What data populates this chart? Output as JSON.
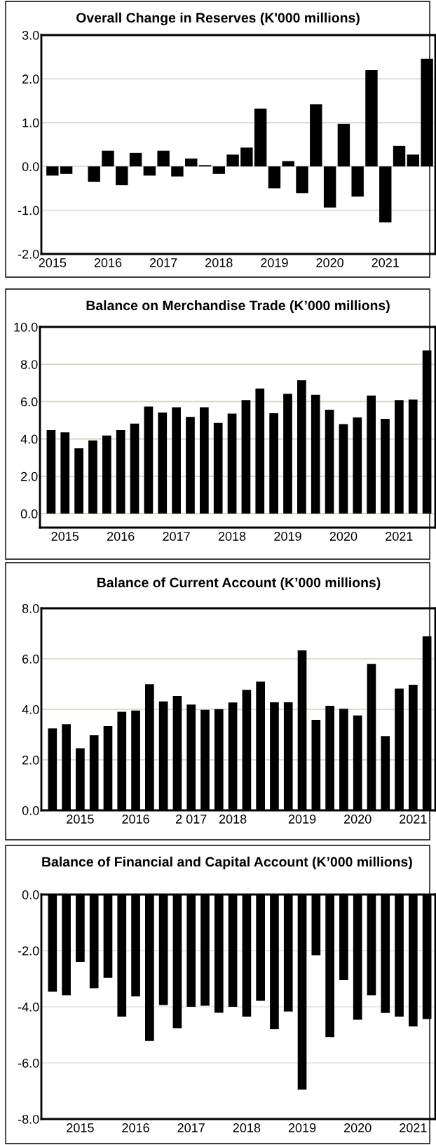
{
  "chart_data": [
    {
      "type": "bar",
      "title": "Overall Change in Reserves (K'000 millions)",
      "categories": [
        "2015",
        null,
        null,
        null,
        "2016",
        null,
        null,
        null,
        "2017",
        null,
        null,
        null,
        "2018",
        null,
        null,
        null,
        "2019",
        null,
        null,
        null,
        "2020",
        null,
        null,
        null,
        "2021",
        null,
        null,
        null
      ],
      "values": [
        -0.21,
        -0.17,
        0.0,
        -0.35,
        0.36,
        -0.43,
        0.31,
        -0.21,
        0.36,
        -0.23,
        0.18,
        0.03,
        -0.17,
        0.27,
        0.43,
        1.32,
        -0.5,
        0.12,
        -0.61,
        1.42,
        -0.94,
        0.97,
        -0.69,
        2.2,
        -1.28,
        0.47,
        0.27,
        2.46
      ],
      "color": "#000000",
      "ylim": [
        -2.0,
        3.0
      ],
      "yticks": [
        {
          "value": -2,
          "label": "-2.0"
        },
        {
          "value": -1,
          "label": "-1.0"
        },
        {
          "value": 0,
          "label": "0.0"
        },
        {
          "value": 1,
          "label": "1.0"
        },
        {
          "value": 2,
          "label": "2.0"
        },
        {
          "value": 3,
          "label": "3.0"
        }
      ],
      "grid": "y"
    },
    {
      "type": "bar",
      "title": "Balance on Merchandise Trade (K’000 millions)",
      "categories": [
        null,
        "2015",
        null,
        null,
        null,
        "2016",
        null,
        null,
        null,
        "2017",
        null,
        null,
        null,
        "2018",
        null,
        null,
        null,
        "2019",
        null,
        null,
        null,
        "2020",
        null,
        null,
        null,
        "2021",
        null,
        null
      ],
      "values": [
        4.47,
        4.35,
        3.5,
        3.92,
        4.18,
        4.47,
        4.82,
        5.73,
        5.41,
        5.7,
        5.18,
        5.7,
        4.86,
        5.36,
        6.08,
        6.7,
        5.38,
        6.42,
        7.14,
        6.36,
        5.56,
        4.79,
        5.15,
        6.33,
        5.08,
        6.08,
        6.11,
        8.74
      ],
      "color": "#000000",
      "ylim": [
        -0.75,
        10.0
      ],
      "yticks": [
        {
          "value": 0,
          "label": "0.0"
        },
        {
          "value": 2,
          "label": "2.0"
        },
        {
          "value": 4,
          "label": "4.0"
        },
        {
          "value": 6,
          "label": "6.0"
        },
        {
          "value": 8,
          "label": "8.0"
        },
        {
          "value": 10,
          "label": "10.0"
        }
      ],
      "grid": "y"
    },
    {
      "type": "bar",
      "title": "Balance of Current Account (K’000 millions)",
      "categories": [
        null,
        null,
        "2015",
        null,
        null,
        null,
        "2016",
        null,
        null,
        null,
        "2 017",
        null,
        null,
        "2018",
        null,
        null,
        null,
        null,
        "2019",
        null,
        null,
        null,
        "2020",
        null,
        null,
        null,
        "2021",
        null
      ],
      "values": [
        3.24,
        3.41,
        2.46,
        2.97,
        3.33,
        3.9,
        3.95,
        4.99,
        4.31,
        4.53,
        4.19,
        3.98,
        4.01,
        4.27,
        4.77,
        5.1,
        4.28,
        4.28,
        6.33,
        3.58,
        4.14,
        4.02,
        3.76,
        5.8,
        2.94,
        4.82,
        4.97,
        6.89
      ],
      "color": "#000000",
      "ylim": [
        0.0,
        8.0
      ],
      "yticks": [
        {
          "value": 0,
          "label": "0.0"
        },
        {
          "value": 2,
          "label": "2.0"
        },
        {
          "value": 4,
          "label": "4.0"
        },
        {
          "value": 6,
          "label": "6.0"
        },
        {
          "value": 8,
          "label": "8.0"
        }
      ],
      "grid": "y"
    },
    {
      "type": "bar",
      "title": "Balance of Financial and Capital Account (K’000 millions)",
      "categories": [
        null,
        null,
        "2015",
        null,
        null,
        null,
        "2016",
        null,
        null,
        null,
        "2017",
        null,
        null,
        null,
        "2018",
        null,
        null,
        null,
        "2019",
        null,
        null,
        null,
        "2020",
        null,
        null,
        null,
        "2021",
        null
      ],
      "values": [
        -3.46,
        -3.59,
        -2.4,
        -3.34,
        -2.97,
        -4.35,
        -3.63,
        -5.22,
        -3.94,
        -4.76,
        -4.0,
        -3.96,
        -4.21,
        -4.0,
        -4.35,
        -3.79,
        -4.8,
        -4.17,
        -6.95,
        -2.16,
        -5.08,
        -3.05,
        -4.46,
        -3.59,
        -4.22,
        -4.35,
        -4.7,
        -4.44
      ],
      "color": "#000000",
      "ylim": [
        -8.0,
        0.0
      ],
      "yticks": [
        {
          "value": -8,
          "label": "-8.0"
        },
        {
          "value": -6,
          "label": "-6.0"
        },
        {
          "value": -4,
          "label": "-4.0"
        },
        {
          "value": -2,
          "label": "-2.0"
        },
        {
          "value": 0,
          "label": "0.0"
        }
      ],
      "grid": "y"
    }
  ]
}
